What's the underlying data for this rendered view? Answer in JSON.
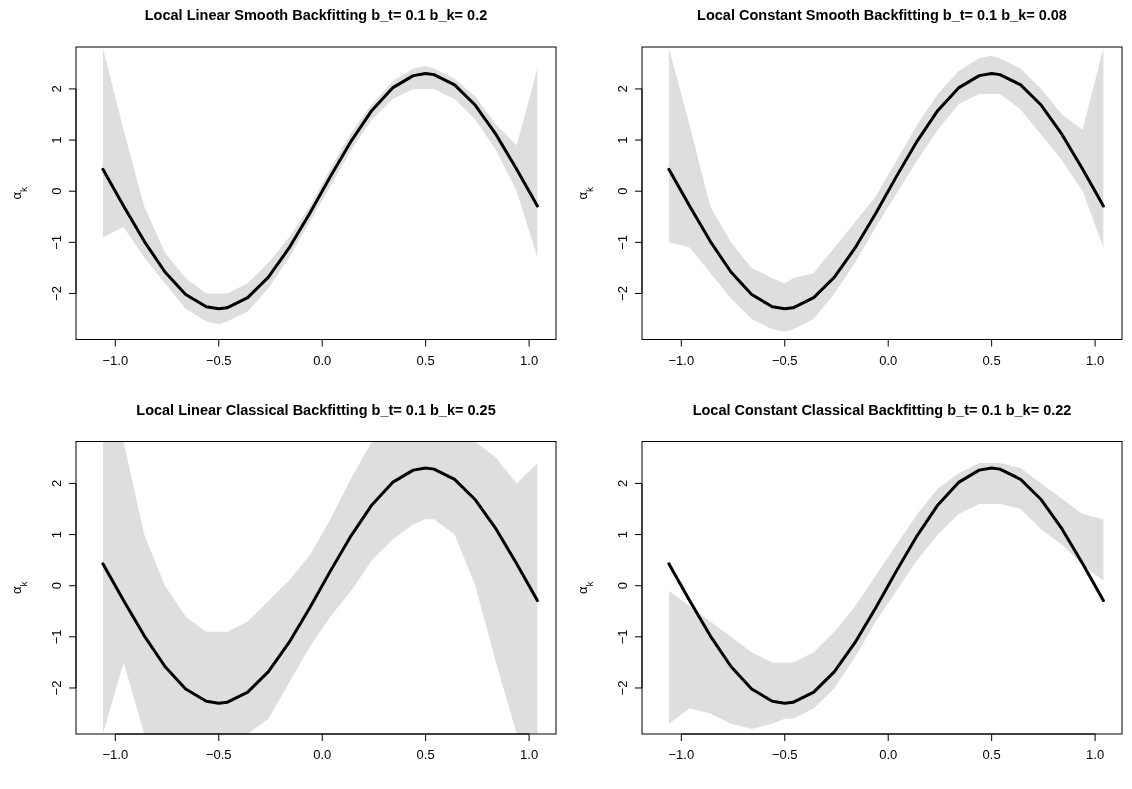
{
  "chart_data": [
    {
      "type": "line",
      "title": "Local Linear Smooth Backfitting b_t= 0.1 b_k= 0.2",
      "ylabel": "α$_{k}$",
      "x": [
        -1.06,
        -0.96,
        -0.86,
        -0.76,
        -0.66,
        -0.56,
        -0.5,
        -0.46,
        -0.36,
        -0.26,
        -0.16,
        -0.06,
        0.04,
        0.14,
        0.24,
        0.34,
        0.44,
        0.5,
        0.54,
        0.64,
        0.74,
        0.84,
        0.94,
        1.04
      ],
      "xlim": [
        -1.19,
        1.13
      ],
      "ylim": [
        -2.9,
        2.82
      ],
      "xticks": [
        {
          "value": -1,
          "label": "−1.0"
        },
        {
          "value": -0.5,
          "label": "−0.5"
        },
        {
          "value": 0,
          "label": "0.0"
        },
        {
          "value": 0.5,
          "label": "0.5"
        },
        {
          "value": 1,
          "label": "1.0"
        }
      ],
      "yticks": [
        -2,
        -1,
        0,
        1,
        2
      ],
      "series": [
        {
          "color": "#000000",
          "values": [
            0.43,
            -0.29,
            -0.98,
            -1.58,
            -2.02,
            -2.26,
            -2.3,
            -2.28,
            -2.08,
            -1.68,
            -1.11,
            -0.43,
            0.29,
            0.98,
            1.58,
            2.02,
            2.26,
            2.3,
            2.28,
            2.08,
            1.68,
            1.11,
            0.43,
            -0.29
          ],
          "lower": [
            -0.9,
            -0.7,
            -1.3,
            -1.8,
            -2.3,
            -2.55,
            -2.6,
            -2.55,
            -2.35,
            -1.9,
            -1.3,
            -0.6,
            0.1,
            0.8,
            1.4,
            1.8,
            2.0,
            2.0,
            2.0,
            1.8,
            1.4,
            0.8,
            0.0,
            -1.3
          ],
          "upper": [
            2.8,
            1.2,
            -0.3,
            -1.2,
            -1.7,
            -2.0,
            -2.0,
            -2.0,
            -1.8,
            -1.4,
            -0.9,
            -0.3,
            0.45,
            1.15,
            1.7,
            2.15,
            2.4,
            2.45,
            2.4,
            2.2,
            1.85,
            1.3,
            0.9,
            2.4
          ]
        }
      ]
    },
    {
      "type": "line",
      "title": "Local Constant Smooth Backfitting b_t= 0.1 b_k= 0.08",
      "ylabel": "α$_{k}$",
      "x": [
        -1.06,
        -0.96,
        -0.86,
        -0.76,
        -0.66,
        -0.56,
        -0.5,
        -0.46,
        -0.36,
        -0.26,
        -0.16,
        -0.06,
        0.04,
        0.14,
        0.24,
        0.34,
        0.44,
        0.5,
        0.54,
        0.64,
        0.74,
        0.84,
        0.94,
        1.04
      ],
      "xlim": [
        -1.19,
        1.13
      ],
      "ylim": [
        -2.9,
        2.82
      ],
      "xticks": [
        {
          "value": -1,
          "label": "−1.0"
        },
        {
          "value": -0.5,
          "label": "−0.5"
        },
        {
          "value": 0,
          "label": "0.0"
        },
        {
          "value": 0.5,
          "label": "0.5"
        },
        {
          "value": 1,
          "label": "1.0"
        }
      ],
      "yticks": [
        -2,
        -1,
        0,
        1,
        2
      ],
      "series": [
        {
          "color": "#000000",
          "values": [
            0.43,
            -0.29,
            -0.98,
            -1.58,
            -2.02,
            -2.26,
            -2.3,
            -2.28,
            -2.08,
            -1.68,
            -1.11,
            -0.43,
            0.29,
            0.98,
            1.58,
            2.02,
            2.26,
            2.3,
            2.28,
            2.08,
            1.68,
            1.11,
            0.43,
            -0.29
          ],
          "lower": [
            -1.0,
            -1.1,
            -1.6,
            -2.1,
            -2.5,
            -2.7,
            -2.75,
            -2.7,
            -2.5,
            -2.0,
            -1.4,
            -0.7,
            -0.05,
            0.6,
            1.2,
            1.7,
            1.9,
            1.9,
            1.9,
            1.6,
            1.1,
            0.6,
            0.0,
            -1.1
          ],
          "upper": [
            2.8,
            1.3,
            -0.3,
            -1.0,
            -1.5,
            -1.7,
            -1.8,
            -1.7,
            -1.6,
            -1.1,
            -0.6,
            -0.1,
            0.6,
            1.3,
            1.9,
            2.35,
            2.6,
            2.65,
            2.6,
            2.4,
            2.0,
            1.5,
            1.2,
            2.8
          ]
        }
      ]
    },
    {
      "type": "line",
      "title": "Local Linear Classical Backfitting b_t= 0.1 b_k= 0.25",
      "ylabel": "α$_{k}$",
      "x": [
        -1.06,
        -0.96,
        -0.86,
        -0.76,
        -0.66,
        -0.56,
        -0.5,
        -0.46,
        -0.36,
        -0.26,
        -0.16,
        -0.06,
        0.04,
        0.14,
        0.24,
        0.34,
        0.44,
        0.5,
        0.54,
        0.64,
        0.74,
        0.84,
        0.94,
        1.04
      ],
      "xlim": [
        -1.19,
        1.13
      ],
      "ylim": [
        -2.9,
        2.82
      ],
      "xticks": [
        {
          "value": -1,
          "label": "−1.0"
        },
        {
          "value": -0.5,
          "label": "−0.5"
        },
        {
          "value": 0,
          "label": "0.0"
        },
        {
          "value": 0.5,
          "label": "0.5"
        },
        {
          "value": 1,
          "label": "1.0"
        }
      ],
      "yticks": [
        -2,
        -1,
        0,
        1,
        2
      ],
      "series": [
        {
          "color": "#000000",
          "values": [
            0.43,
            -0.29,
            -0.98,
            -1.58,
            -2.02,
            -2.26,
            -2.3,
            -2.28,
            -2.08,
            -1.68,
            -1.11,
            -0.43,
            0.29,
            0.98,
            1.58,
            2.02,
            2.26,
            2.3,
            2.28,
            2.08,
            1.68,
            1.11,
            0.43,
            -0.29
          ],
          "lower": [
            -2.9,
            -1.5,
            -2.9,
            -2.9,
            -2.9,
            -2.9,
            -2.9,
            -2.9,
            -2.9,
            -2.6,
            -1.9,
            -1.2,
            -0.6,
            -0.1,
            0.5,
            0.9,
            1.2,
            1.3,
            1.3,
            1.0,
            0.0,
            -1.5,
            -2.9,
            -2.9
          ],
          "upper": [
            2.82,
            2.82,
            1.0,
            0.0,
            -0.6,
            -0.9,
            -0.9,
            -0.9,
            -0.7,
            -0.3,
            0.1,
            0.6,
            1.3,
            2.1,
            2.82,
            2.82,
            2.82,
            2.82,
            2.82,
            2.82,
            2.82,
            2.5,
            2.0,
            2.4
          ]
        }
      ]
    },
    {
      "type": "line",
      "title": "Local Constant Classical Backfitting b_t= 0.1 b_k= 0.22",
      "ylabel": "α$_{k}$",
      "x": [
        -1.06,
        -0.96,
        -0.86,
        -0.76,
        -0.66,
        -0.56,
        -0.5,
        -0.46,
        -0.36,
        -0.26,
        -0.16,
        -0.06,
        0.04,
        0.14,
        0.24,
        0.34,
        0.44,
        0.5,
        0.54,
        0.64,
        0.74,
        0.84,
        0.94,
        1.04
      ],
      "xlim": [
        -1.19,
        1.13
      ],
      "ylim": [
        -2.9,
        2.82
      ],
      "xticks": [
        {
          "value": -1,
          "label": "−1.0"
        },
        {
          "value": -0.5,
          "label": "−0.5"
        },
        {
          "value": 0,
          "label": "0.0"
        },
        {
          "value": 0.5,
          "label": "0.5"
        },
        {
          "value": 1,
          "label": "1.0"
        }
      ],
      "yticks": [
        -2,
        -1,
        0,
        1,
        2
      ],
      "series": [
        {
          "color": "#000000",
          "values": [
            0.43,
            -0.29,
            -0.98,
            -1.58,
            -2.02,
            -2.26,
            -2.3,
            -2.28,
            -2.08,
            -1.68,
            -1.11,
            -0.43,
            0.29,
            0.98,
            1.58,
            2.02,
            2.26,
            2.3,
            2.28,
            2.08,
            1.68,
            1.11,
            0.43,
            -0.29
          ],
          "lower": [
            -2.7,
            -2.4,
            -2.5,
            -2.7,
            -2.8,
            -2.7,
            -2.6,
            -2.6,
            -2.4,
            -2.0,
            -1.4,
            -0.7,
            -0.1,
            0.5,
            1.0,
            1.4,
            1.6,
            1.6,
            1.6,
            1.5,
            1.1,
            0.8,
            0.4,
            0.1
          ],
          "upper": [
            -0.1,
            -0.4,
            -0.7,
            -1.0,
            -1.3,
            -1.5,
            -1.5,
            -1.5,
            -1.3,
            -0.9,
            -0.4,
            0.2,
            0.8,
            1.4,
            1.9,
            2.2,
            2.4,
            2.4,
            2.4,
            2.3,
            2.0,
            1.7,
            1.4,
            1.3
          ]
        }
      ]
    }
  ]
}
